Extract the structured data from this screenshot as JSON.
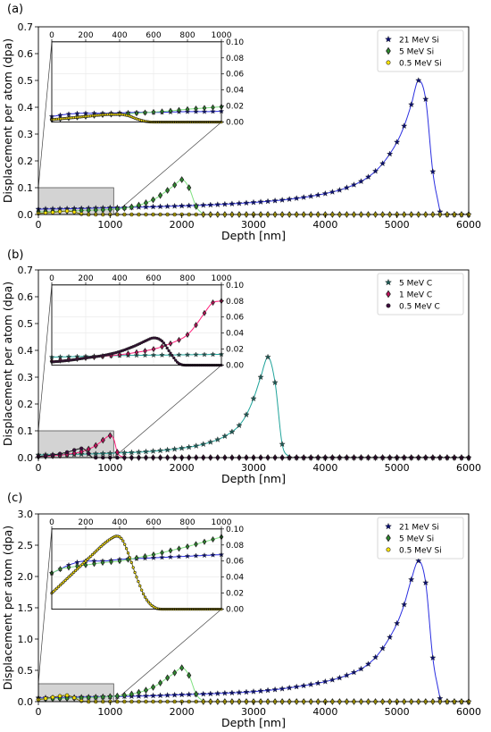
{
  "chart_data": [
    {
      "panel_label": "(a)",
      "type": "line",
      "xlabel": "Depth [nm]",
      "ylabel": "Displacement per atom (dpa)",
      "xlim": [
        0,
        6000
      ],
      "ylim": [
        0,
        0.7
      ],
      "x_ticks": [
        "0",
        "1000",
        "2000",
        "3000",
        "4000",
        "5000",
        "6000"
      ],
      "y_ticks": [
        "0.0",
        "0.1",
        "0.2",
        "0.3",
        "0.4",
        "0.5",
        "0.6",
        "0.7"
      ],
      "legend_position": "top-right",
      "series": [
        {
          "name": "21 MeV Si",
          "color": "#2a2ee0",
          "marker_color": "#0b1070",
          "marker": "star",
          "x": [
            0,
            500,
            1000,
            1500,
            2000,
            2500,
            3000,
            3500,
            4000,
            4300,
            4600,
            4800,
            5000,
            5100,
            5200,
            5300,
            5400,
            5500,
            5600
          ],
          "y": [
            0.02,
            0.022,
            0.025,
            0.028,
            0.032,
            0.037,
            0.045,
            0.057,
            0.078,
            0.1,
            0.14,
            0.19,
            0.27,
            0.33,
            0.41,
            0.5,
            0.43,
            0.16,
            0.01
          ]
        },
        {
          "name": "5 MeV Si",
          "color": "#7ee07e",
          "marker_color": "#2e8b2e",
          "marker": "diamond",
          "x": [
            0,
            300,
            600,
            1000,
            1300,
            1600,
            1800,
            1900,
            2000,
            2100,
            2200,
            2300
          ],
          "y": [
            0.01,
            0.012,
            0.015,
            0.019,
            0.028,
            0.055,
            0.09,
            0.11,
            0.13,
            0.1,
            0.03,
            0.0
          ]
        },
        {
          "name": "0.5 MeV Si",
          "color": "#6b6b00",
          "marker_color": "#ffe600",
          "marker": "circle",
          "x": [
            0,
            200,
            300,
            400,
            500,
            600,
            700
          ],
          "y": [
            0.004,
            0.008,
            0.011,
            0.013,
            0.009,
            0.002,
            0.0
          ]
        }
      ],
      "zoom_box": {
        "x": [
          0,
          1050
        ],
        "y": [
          0,
          0.1
        ]
      },
      "inset": {
        "xlim": [
          0,
          1000
        ],
        "ylim": [
          0,
          0.1
        ],
        "x_ticks": [
          "0",
          "200",
          "400",
          "600",
          "800",
          "1000"
        ],
        "y_ticks": [
          "0.00",
          "0.02",
          "0.04",
          "0.06",
          "0.08",
          "0.10"
        ],
        "series": [
          {
            "name": "21 MeV Si",
            "x": [
              0,
              100,
              200,
              300,
              400,
              500,
              600,
              700,
              800,
              900,
              1000
            ],
            "y": [
              0.007,
              0.01,
              0.011,
              0.011,
              0.0115,
              0.012,
              0.012,
              0.0125,
              0.013,
              0.013,
              0.0135
            ]
          },
          {
            "name": "5 MeV Si",
            "x": [
              0,
              100,
              200,
              300,
              400,
              500,
              600,
              700,
              800,
              900,
              1000
            ],
            "y": [
              0.003,
              0.005,
              0.007,
              0.009,
              0.01,
              0.011,
              0.0125,
              0.014,
              0.016,
              0.0175,
              0.019
            ]
          },
          {
            "name": "0.5 MeV Si",
            "x": [
              0,
              100,
              200,
              300,
              350,
              400,
              450,
              500,
              550,
              600,
              700,
              800,
              1000
            ],
            "y": [
              0.003,
              0.005,
              0.007,
              0.009,
              0.0095,
              0.0095,
              0.008,
              0.004,
              0.001,
              0.0,
              0.0,
              0.0,
              0.0
            ]
          }
        ]
      }
    },
    {
      "panel_label": "(b)",
      "type": "line",
      "xlabel": "Depth [nm]",
      "ylabel": "Displacement per atom (dpa)",
      "xlim": [
        0,
        6000
      ],
      "ylim": [
        0,
        0.7
      ],
      "x_ticks": [
        "0",
        "1000",
        "2000",
        "3000",
        "4000",
        "5000",
        "6000"
      ],
      "y_ticks": [
        "0.0",
        "0.1",
        "0.2",
        "0.3",
        "0.4",
        "0.5",
        "0.6",
        "0.7"
      ],
      "legend_position": "top-right",
      "series": [
        {
          "name": "5 MeV C",
          "color": "#1fa39a",
          "marker_color": "#1f5a55",
          "marker": "star",
          "x": [
            0,
            500,
            1000,
            1500,
            2000,
            2300,
            2600,
            2800,
            2900,
            3000,
            3100,
            3200,
            3300,
            3400,
            3500
          ],
          "y": [
            0.01,
            0.012,
            0.016,
            0.022,
            0.035,
            0.05,
            0.08,
            0.12,
            0.16,
            0.22,
            0.3,
            0.375,
            0.28,
            0.05,
            0.0
          ]
        },
        {
          "name": "1 MeV C",
          "color": "#ff1f7a",
          "marker_color": "#c0105a",
          "marker": "diamond",
          "x": [
            0,
            200,
            400,
            600,
            800,
            900,
            1000,
            1050,
            1100,
            1200
          ],
          "y": [
            0.004,
            0.007,
            0.012,
            0.022,
            0.045,
            0.065,
            0.082,
            0.07,
            0.02,
            0.0
          ]
        },
        {
          "name": "0.5 MeV C",
          "color": "#111111",
          "marker_color": "#3a0a3a",
          "marker": "circle",
          "x": [
            0,
            200,
            400,
            500,
            600,
            650,
            700,
            750
          ],
          "y": [
            0.004,
            0.01,
            0.02,
            0.028,
            0.034,
            0.03,
            0.015,
            0.0
          ]
        }
      ],
      "zoom_box": {
        "x": [
          0,
          1050
        ],
        "y": [
          0,
          0.1
        ]
      },
      "inset": {
        "xlim": [
          0,
          1000
        ],
        "ylim": [
          0,
          0.1
        ],
        "x_ticks": [
          "0",
          "200",
          "400",
          "600",
          "800",
          "1000"
        ],
        "y_ticks": [
          "0.00",
          "0.02",
          "0.04",
          "0.06",
          "0.08",
          "0.10"
        ],
        "series": [
          {
            "name": "5 MeV C",
            "x": [
              0,
              200,
              400,
              600,
              800,
              1000
            ],
            "y": [
              0.01,
              0.011,
              0.012,
              0.0125,
              0.013,
              0.0135
            ]
          },
          {
            "name": "1 MeV C",
            "x": [
              0,
              100,
              200,
              300,
              400,
              500,
              600,
              700,
              800,
              850,
              900,
              950,
              1000
            ],
            "y": [
              0.005,
              0.007,
              0.009,
              0.011,
              0.013,
              0.016,
              0.02,
              0.027,
              0.038,
              0.05,
              0.065,
              0.078,
              0.08
            ]
          },
          {
            "name": "0.5 MeV C",
            "x": [
              0,
              100,
              200,
              300,
              400,
              500,
              550,
              600,
              650,
              700,
              750,
              800,
              1000
            ],
            "y": [
              0.004,
              0.006,
              0.009,
              0.012,
              0.017,
              0.025,
              0.03,
              0.034,
              0.03,
              0.015,
              0.002,
              0.0,
              0.0
            ]
          }
        ]
      }
    },
    {
      "panel_label": "(c)",
      "type": "line",
      "xlabel": "Depth [nm]",
      "ylabel": "Displacement per atom (dpa)",
      "xlim": [
        0,
        6000
      ],
      "ylim": [
        0,
        3.0
      ],
      "x_ticks": [
        "0",
        "1000",
        "2000",
        "3000",
        "4000",
        "5000",
        "6000"
      ],
      "y_ticks": [
        "0.0",
        "0.5",
        "1.0",
        "1.5",
        "2.0",
        "2.5",
        "3.0"
      ],
      "legend_position": "top-right",
      "series": [
        {
          "name": "21 MeV Si",
          "color": "#2a2ee0",
          "marker_color": "#0b1070",
          "marker": "star",
          "x": [
            0,
            500,
            1000,
            1500,
            2000,
            2500,
            3000,
            3500,
            4000,
            4300,
            4600,
            4800,
            5000,
            5100,
            5200,
            5300,
            5400,
            5500,
            5600
          ],
          "y": [
            0.06,
            0.07,
            0.08,
            0.09,
            0.11,
            0.13,
            0.16,
            0.22,
            0.32,
            0.42,
            0.6,
            0.85,
            1.25,
            1.55,
            1.95,
            2.25,
            1.9,
            0.7,
            0.05
          ]
        },
        {
          "name": "5 MeV Si",
          "color": "#7ee07e",
          "marker_color": "#2e8b2e",
          "marker": "diamond",
          "x": [
            0,
            300,
            600,
            1000,
            1300,
            1600,
            1800,
            1900,
            2000,
            2100,
            2200,
            2300
          ],
          "y": [
            0.04,
            0.05,
            0.06,
            0.08,
            0.12,
            0.23,
            0.38,
            0.46,
            0.54,
            0.42,
            0.12,
            0.0
          ]
        },
        {
          "name": "0.5 MeV Si",
          "color": "#6b6b00",
          "marker_color": "#ffe600",
          "marker": "circle",
          "x": [
            0,
            200,
            300,
            400,
            500,
            600,
            700
          ],
          "y": [
            0.03,
            0.07,
            0.09,
            0.1,
            0.06,
            0.01,
            0.0
          ]
        }
      ],
      "zoom_box": {
        "x": [
          0,
          1050
        ],
        "y": [
          0,
          0.1
        ]
      },
      "inset": {
        "xlim": [
          0,
          1000
        ],
        "ylim": [
          0,
          0.1
        ],
        "x_ticks": [
          "0",
          "200",
          "400",
          "600",
          "800",
          "1000"
        ],
        "y_ticks": [
          "0.00",
          "0.02",
          "0.04",
          "0.06",
          "0.08",
          "0.10"
        ],
        "series": [
          {
            "name": "21 MeV Si",
            "x": [
              0,
              50,
              100,
              200,
              300,
              400,
              500,
              600,
              700,
              800,
              900,
              1000
            ],
            "y": [
              0.045,
              0.05,
              0.055,
              0.06,
              0.06,
              0.062,
              0.063,
              0.064,
              0.065,
              0.066,
              0.067,
              0.068
            ]
          },
          {
            "name": "5 MeV Si",
            "x": [
              0,
              50,
              100,
              200,
              300,
              400,
              500,
              600,
              700,
              800,
              900,
              1000
            ],
            "y": [
              0.045,
              0.05,
              0.052,
              0.055,
              0.058,
              0.06,
              0.064,
              0.068,
              0.073,
              0.078,
              0.084,
              0.09
            ]
          },
          {
            "name": "0.5 MeV Si",
            "x": [
              0,
              50,
              100,
              150,
              200,
              250,
              300,
              350,
              380,
              400,
              420,
              450,
              500,
              550,
              600,
              650,
              700,
              1000
            ],
            "y": [
              0.02,
              0.03,
              0.04,
              0.05,
              0.06,
              0.07,
              0.08,
              0.088,
              0.091,
              0.09,
              0.085,
              0.07,
              0.04,
              0.015,
              0.003,
              0.0,
              0.0,
              0.0
            ]
          }
        ]
      }
    }
  ]
}
